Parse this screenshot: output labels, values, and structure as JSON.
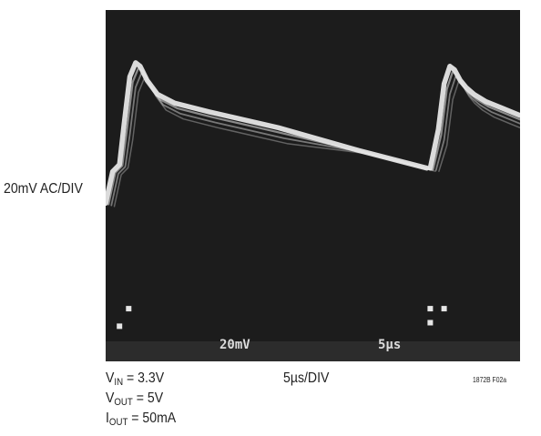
{
  "chart_data": {
    "type": "line",
    "title": "",
    "ylabel": "20mV AC/DIV",
    "xlabel": "5µs/DIV",
    "x_unit": "µs",
    "y_unit": "mV",
    "grid": false,
    "background": "#1c1c1c",
    "trace_color": "#e6e6e6",
    "series": [
      {
        "values_note_free": true,
        "x": [
          0,
          2,
          4,
          6,
          10,
          15,
          20,
          25,
          28,
          29.5,
          31.5,
          34
        ],
        "y": [
          -40,
          10,
          70,
          50,
          40,
          30,
          20,
          10,
          -5,
          70,
          55,
          46
        ]
      }
    ],
    "screen_readouts": [
      "20mV",
      "5µs"
    ],
    "conditions": [
      {
        "sym": "V",
        "sub": "IN",
        "rest": " = 3.3V"
      },
      {
        "sym": "V",
        "sub": "OUT",
        "rest": " = 5V"
      },
      {
        "sym": "I",
        "sub": "OUT",
        "rest": " = 50mA"
      }
    ],
    "figure_id": "1872B F02a"
  }
}
